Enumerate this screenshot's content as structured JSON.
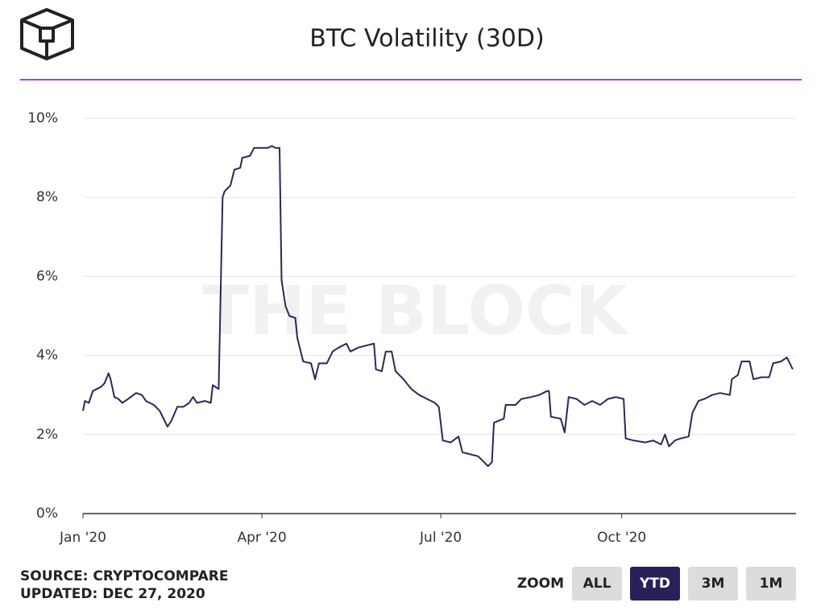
{
  "chart_data": {
    "type": "line",
    "title": "BTC Volatility (30D)",
    "watermark": "THE BLOCK",
    "x": [
      0,
      1,
      3,
      5,
      7,
      9,
      11,
      13,
      14,
      16,
      18,
      20,
      23,
      27,
      30,
      32,
      36,
      39,
      43,
      45,
      48,
      51,
      54,
      56,
      58,
      62,
      65,
      66,
      69,
      71,
      72,
      75,
      77,
      80,
      81,
      85,
      87,
      91,
      94,
      96,
      98,
      100,
      101,
      103,
      105,
      108,
      109,
      112,
      116,
      118,
      120,
      124,
      127,
      130,
      134,
      136,
      140,
      144,
      148,
      149,
      152,
      154,
      157,
      159,
      163,
      167,
      171,
      175,
      179,
      181,
      183,
      187,
      191,
      193,
      197,
      201,
      204,
      206,
      208,
      209,
      214,
      215,
      220,
      223,
      228,
      232,
      236,
      237,
      238,
      243,
      245,
      247,
      251,
      255,
      259,
      263,
      267,
      271,
      275,
      276,
      280,
      286,
      290,
      294,
      296,
      298,
      301,
      304,
      308,
      310,
      313,
      316,
      320,
      324,
      329,
      330,
      333,
      335,
      339,
      341,
      345,
      349,
      351,
      355,
      358,
      361
    ],
    "series": [
      {
        "name": "BTC Volatility (30D)",
        "color": "#2b2859",
        "values": [
          2.6,
          2.85,
          2.8,
          3.1,
          3.15,
          3.2,
          3.3,
          3.55,
          3.4,
          2.95,
          2.9,
          2.8,
          2.9,
          3.05,
          3.0,
          2.85,
          2.75,
          2.6,
          2.2,
          2.35,
          2.7,
          2.7,
          2.8,
          2.95,
          2.8,
          2.85,
          2.8,
          3.25,
          3.15,
          8.0,
          8.15,
          8.3,
          8.7,
          8.75,
          9.0,
          9.05,
          9.25,
          9.25,
          9.25,
          9.3,
          9.25,
          9.25,
          5.9,
          5.25,
          5.0,
          4.95,
          4.45,
          3.85,
          3.8,
          3.4,
          3.8,
          3.8,
          4.1,
          4.2,
          4.3,
          4.1,
          4.2,
          4.25,
          4.3,
          3.65,
          3.6,
          4.1,
          4.1,
          3.6,
          3.4,
          3.15,
          3.0,
          2.9,
          2.8,
          2.7,
          1.85,
          1.8,
          1.95,
          1.55,
          1.5,
          1.45,
          1.3,
          1.2,
          1.3,
          2.3,
          2.4,
          2.75,
          2.75,
          2.9,
          2.95,
          3.0,
          3.1,
          3.1,
          2.45,
          2.4,
          2.05,
          2.95,
          2.9,
          2.75,
          2.85,
          2.75,
          2.9,
          2.95,
          2.9,
          1.9,
          1.85,
          1.8,
          1.85,
          1.75,
          2.0,
          1.7,
          1.85,
          1.9,
          1.95,
          2.55,
          2.85,
          2.9,
          3.0,
          3.05,
          3.0,
          3.4,
          3.5,
          3.85,
          3.85,
          3.4,
          3.45,
          3.45,
          3.8,
          3.85,
          3.95,
          3.65
        ]
      }
    ],
    "xlim": [
      0,
      361
    ],
    "xticks": [
      {
        "value": 0,
        "label": "Jan '20"
      },
      {
        "value": 91,
        "label": "Apr '20"
      },
      {
        "value": 182,
        "label": "Jul '20"
      },
      {
        "value": 274,
        "label": "Oct '20"
      }
    ],
    "ylim": [
      0,
      10
    ],
    "yticks": [
      {
        "value": 0,
        "label": "0%"
      },
      {
        "value": 2,
        "label": "2%"
      },
      {
        "value": 4,
        "label": "4%"
      },
      {
        "value": 6,
        "label": "6%"
      },
      {
        "value": 8,
        "label": "8%"
      },
      {
        "value": 10,
        "label": "10%"
      }
    ],
    "grid": true
  },
  "footer": {
    "source": "SOURCE: CRYPTOCOMPARE",
    "updated": "UPDATED: DEC 27, 2020"
  },
  "zoom": {
    "label": "ZOOM",
    "buttons": [
      "ALL",
      "YTD",
      "3M",
      "1M"
    ],
    "active": 1
  }
}
